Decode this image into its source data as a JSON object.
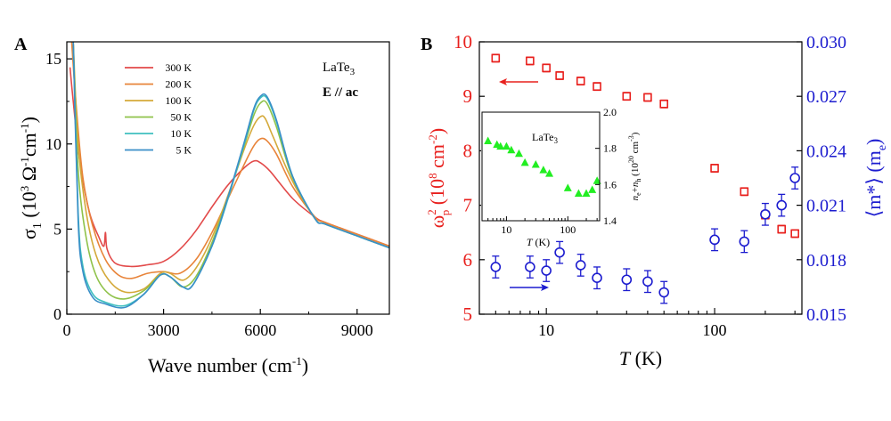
{
  "chart_data": [
    {
      "panel_label": "A",
      "type": "line",
      "xlabel": "Wave number (cm",
      "xlabel_sup": "-1",
      "xlabel_tail": ")",
      "ylabel": {
        "base": "σ",
        "sub": "1",
        "open": " (10",
        "sup1": "3",
        "mid": " Ω",
        "sup2": "-1",
        "unit": "cm",
        "sup3": "-1",
        "close": ")"
      },
      "xlim": [
        0,
        10000
      ],
      "ylim": [
        0,
        16
      ],
      "x_ticks": [
        0,
        3000,
        6000,
        9000
      ],
      "y_ticks": [
        0,
        5,
        10,
        15
      ],
      "annotations": [
        {
          "text": "LaTe",
          "sub": "3"
        },
        {
          "text": "E // ac"
        }
      ],
      "series": [
        {
          "name": "300 K",
          "color": "#e24a4a",
          "x": [
            100,
            200,
            400,
            700,
            1000,
            1150,
            1200,
            1250,
            1500,
            2000,
            2500,
            3000,
            3500,
            4000,
            4500,
            5000,
            5500,
            5800,
            6000,
            6300,
            7000,
            7700,
            8000,
            9000,
            10000
          ],
          "y": [
            14.5,
            12.5,
            9.0,
            6.0,
            4.5,
            4.0,
            4.8,
            3.8,
            3.0,
            2.8,
            2.9,
            3.1,
            3.8,
            4.9,
            6.3,
            7.6,
            8.6,
            9.0,
            8.9,
            8.4,
            6.8,
            5.7,
            5.4,
            4.7,
            4.0
          ]
        },
        {
          "name": "200 K",
          "color": "#e8843a",
          "x": [
            150,
            300,
            500,
            800,
            1200,
            1600,
            2000,
            2500,
            3000,
            3500,
            4000,
            4500,
            5000,
            5500,
            5800,
            6000,
            6200,
            6500,
            7000,
            7700,
            8000,
            9000,
            10000
          ],
          "y": [
            16,
            12.0,
            8.0,
            5.2,
            3.2,
            2.3,
            2.1,
            2.4,
            2.5,
            2.4,
            3.2,
            4.8,
            6.8,
            8.8,
            9.9,
            10.3,
            10.2,
            9.4,
            7.5,
            5.7,
            5.4,
            4.7,
            4.0
          ]
        },
        {
          "name": "100 K",
          "color": "#d4a93a",
          "x": [
            200,
            350,
            600,
            900,
            1300,
            1800,
            2400,
            2900,
            3200,
            3600,
            4000,
            4500,
            5000,
            5500,
            5800,
            6000,
            6150,
            6400,
            7000,
            7700,
            8000,
            9000,
            10000
          ],
          "y": [
            16,
            10.0,
            6.0,
            3.5,
            2.0,
            1.3,
            1.5,
            2.4,
            2.4,
            2.0,
            2.7,
            4.5,
            7.0,
            9.7,
            11.1,
            11.6,
            11.5,
            10.4,
            7.8,
            5.6,
            5.3,
            4.6,
            3.9
          ]
        },
        {
          "name": "50 K",
          "color": "#8fc24a",
          "x": [
            200,
            350,
            600,
            900,
            1300,
            1800,
            2400,
            2900,
            3200,
            3600,
            4000,
            4500,
            5000,
            5500,
            5800,
            6000,
            6200,
            6500,
            7000,
            7700,
            8000,
            9000,
            10000
          ],
          "y": [
            16,
            8.5,
            4.5,
            2.3,
            1.2,
            0.9,
            1.4,
            2.3,
            2.2,
            1.6,
            2.2,
            4.2,
            6.9,
            9.9,
            11.7,
            12.4,
            12.4,
            11.0,
            8.0,
            5.6,
            5.3,
            4.6,
            3.9
          ]
        },
        {
          "name": "10 K",
          "color": "#3fbfbf",
          "x": [
            200,
            350,
            500,
            800,
            1200,
            1800,
            2400,
            2900,
            3200,
            3600,
            3900,
            4500,
            5000,
            5500,
            5800,
            6000,
            6200,
            6500,
            7000,
            7700,
            8000,
            9000,
            10000
          ],
          "y": [
            16,
            6.0,
            2.8,
            1.2,
            0.7,
            0.5,
            1.2,
            2.3,
            2.2,
            1.6,
            1.7,
            4.0,
            6.8,
            10.0,
            12.0,
            12.7,
            12.7,
            11.3,
            8.1,
            5.6,
            5.3,
            4.6,
            3.9
          ]
        },
        {
          "name": "5 K",
          "color": "#3a8fc8",
          "x": [
            200,
            350,
            500,
            800,
            1200,
            1800,
            2400,
            2900,
            3200,
            3600,
            3900,
            4500,
            5000,
            5500,
            5800,
            6000,
            6200,
            6500,
            7000,
            7700,
            8000,
            9000,
            10000
          ],
          "y": [
            16,
            5.5,
            2.5,
            1.0,
            0.6,
            0.4,
            1.2,
            2.3,
            2.2,
            1.6,
            1.7,
            4.0,
            6.9,
            10.1,
            12.1,
            12.8,
            12.8,
            11.4,
            8.1,
            5.6,
            5.3,
            4.6,
            3.9
          ]
        }
      ]
    },
    {
      "panel_label": "B",
      "type": "scatter",
      "xlabel": "T",
      "xlabel_unit": " (K)",
      "x_scale": "log",
      "xlim": [
        4,
        330
      ],
      "x_ticks": [
        10,
        100
      ],
      "left_axis": {
        "color": "#e8201d",
        "label": {
          "base": "ω",
          "sup": "2",
          "sub": "p",
          "unit": " (10",
          "sup2": "8",
          "tail": " cm",
          "sup3": "-2",
          "close": ")"
        },
        "ylim": [
          5,
          10
        ],
        "ticks": [
          5,
          6,
          7,
          8,
          9,
          10
        ]
      },
      "right_axis": {
        "color": "#1c1ccf",
        "label": "⟨m*⟩ (m",
        "label_sub": "e",
        "label_close": ")",
        "ylim": [
          0.015,
          0.03
        ],
        "ticks": [
          "0.015",
          "0.018",
          "0.021",
          "0.024",
          "0.027",
          "0.030"
        ],
        "tick_values": [
          0.015,
          0.018,
          0.021,
          0.024,
          0.027,
          0.03
        ]
      },
      "series": [
        {
          "name": "ω_p^2",
          "axis": "left",
          "marker": "square",
          "x": [
            5,
            8,
            10,
            12,
            16,
            20,
            30,
            40,
            50,
            100,
            150,
            200,
            250,
            300
          ],
          "y": [
            9.7,
            9.65,
            9.52,
            9.38,
            9.28,
            9.18,
            9.0,
            8.98,
            8.86,
            7.68,
            7.25,
            6.82,
            6.56,
            6.48
          ],
          "err": [
            0.07,
            0.07,
            0.07,
            0.07,
            0.07,
            0.07,
            0.07,
            0.07,
            0.07,
            0.07,
            0.07,
            0.07,
            0.07,
            0.07
          ]
        },
        {
          "name": "m*",
          "axis": "right",
          "marker": "circle",
          "x": [
            5,
            8,
            10,
            12,
            16,
            20,
            30,
            40,
            50,
            100,
            150,
            200,
            250,
            300
          ],
          "y": [
            0.0176,
            0.0176,
            0.0174,
            0.0184,
            0.0177,
            0.017,
            0.0169,
            0.0168,
            0.0162,
            0.0191,
            0.019,
            0.0205,
            0.021,
            0.0225
          ],
          "err": [
            0.0006,
            0.0006,
            0.0006,
            0.0006,
            0.0006,
            0.0006,
            0.0006,
            0.0006,
            0.0006,
            0.0006,
            0.0006,
            0.0006,
            0.0006,
            0.0006
          ]
        }
      ],
      "inset": {
        "type": "scatter",
        "label": "LaTe",
        "label_sub": "3",
        "xlabel": "T",
        "xlabel_unit": " (K)",
        "ylabel": "n",
        "x_scale": "log",
        "xlim": [
          4,
          330
        ],
        "ylim": [
          1.4,
          2.0
        ],
        "x_ticks": [
          10,
          100
        ],
        "y_ticks": [
          "1.4",
          "1.6",
          "1.8",
          "2.0"
        ],
        "y_tick_values": [
          1.4,
          1.6,
          1.8,
          2.0
        ],
        "marker_color": "#22ee22",
        "x": [
          5,
          7,
          8,
          10,
          12,
          16,
          20,
          30,
          40,
          50,
          100,
          150,
          200,
          250,
          300
        ],
        "y": [
          1.84,
          1.82,
          1.81,
          1.81,
          1.79,
          1.77,
          1.72,
          1.71,
          1.68,
          1.66,
          1.58,
          1.55,
          1.55,
          1.57,
          1.62
        ]
      }
    }
  ]
}
